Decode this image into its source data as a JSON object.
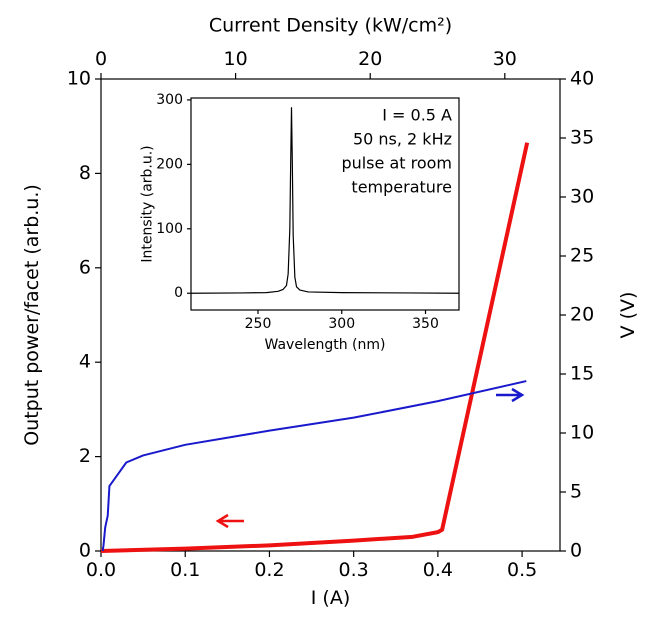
{
  "chart_data": [
    {
      "type": "line",
      "xlabel": "I (A)",
      "ylabel": "Output power/facet (arb.u.)",
      "y2label": "V (V)",
      "x2label": "Current Density (kW/cm²)",
      "xlim": [
        0,
        0.545
      ],
      "xticks": [
        {
          "value": 0,
          "label": "0.0"
        },
        0.1,
        0.2,
        0.3,
        0.4,
        0.5
      ],
      "ylim": [
        0,
        10
      ],
      "yticks": [
        0,
        2,
        4,
        6,
        8,
        10
      ],
      "y2lim": [
        0,
        40
      ],
      "y2ticks": [
        0,
        5,
        10,
        15,
        20,
        25,
        30,
        35,
        40
      ],
      "x2lim": [
        0,
        34.1
      ],
      "x2ticks": [
        0,
        10,
        20,
        30
      ],
      "series": [
        {
          "color": "#ee1111",
          "x": [
            0.0,
            0.1,
            0.2,
            0.3,
            0.37,
            0.4,
            0.405,
            0.506
          ],
          "values": [
            0,
            0.05,
            0.12,
            0.22,
            0.3,
            0.4,
            0.45,
            8.65
          ]
        },
        {
          "color": "#1a1acc",
          "axis": "y2",
          "x": [
            0.002,
            0.003,
            0.005,
            0.008,
            0.01,
            0.02,
            0.03,
            0.05,
            0.1,
            0.2,
            0.3,
            0.4,
            0.505
          ],
          "values": [
            0,
            0.5,
            2,
            3,
            5.5,
            6.5,
            7.5,
            8.1,
            9,
            10.2,
            11.3,
            12.7,
            14.4
          ]
        }
      ]
    },
    {
      "type": "line",
      "xlabel": "Wavelength (nm)",
      "ylabel": "Intensity (arb.u.)",
      "xlim": [
        210,
        370
      ],
      "xticks": [
        250,
        300,
        350
      ],
      "ylim": [
        -26,
        303
      ],
      "yticks": [
        0,
        100,
        200,
        300
      ],
      "annotation": [
        "I = 0.5 A",
        "50 ns, 2 kHz",
        "pulse at room",
        "temperature"
      ],
      "series": [
        {
          "color": "#000000",
          "x": [
            210,
            240,
            255,
            262,
            265,
            267,
            268,
            269,
            269.5,
            270,
            270.5,
            271,
            272,
            273,
            275,
            280,
            300,
            340,
            370
          ],
          "values": [
            0,
            0.5,
            1,
            3,
            6,
            12,
            30,
            100,
            200,
            288,
            200,
            90,
            25,
            10,
            5,
            2,
            1,
            0.5,
            0
          ]
        }
      ]
    }
  ]
}
